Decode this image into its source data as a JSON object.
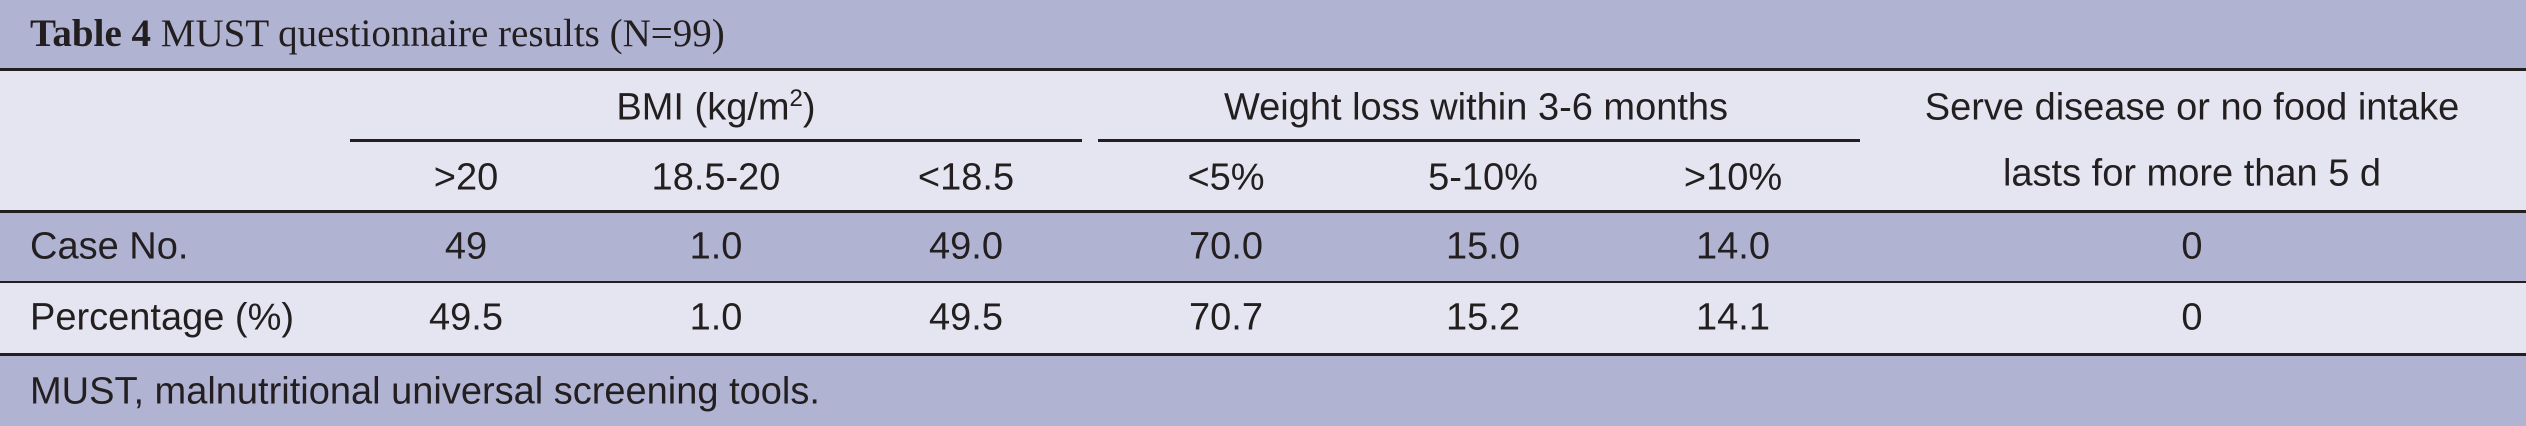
{
  "table": {
    "title_bold": "Table 4",
    "title_rest": " MUST questionnaire results (N=99)",
    "group_headers": {
      "bmi_prefix": "BMI (kg/m",
      "bmi_sup": "2",
      "bmi_suffix": ")",
      "weight_loss": "Weight loss within 3-6 months",
      "serve_line1": "Serve disease or no food intake",
      "serve_line2": "lasts for more than 5 d"
    },
    "sub_headers": [
      ">20",
      "18.5-20",
      "<18.5",
      "<5%",
      "5-10%",
      ">10%"
    ],
    "rows": [
      {
        "label": "Case No.",
        "values": [
          "49",
          "1.0",
          "49.0",
          "70.0",
          "15.0",
          "14.0",
          "0"
        ]
      },
      {
        "label": "Percentage (%)",
        "values": [
          "49.5",
          "1.0",
          "49.5",
          "70.7",
          "15.2",
          "14.1",
          "0"
        ]
      }
    ],
    "footnote": "MUST, malnutritional universal screening tools."
  }
}
